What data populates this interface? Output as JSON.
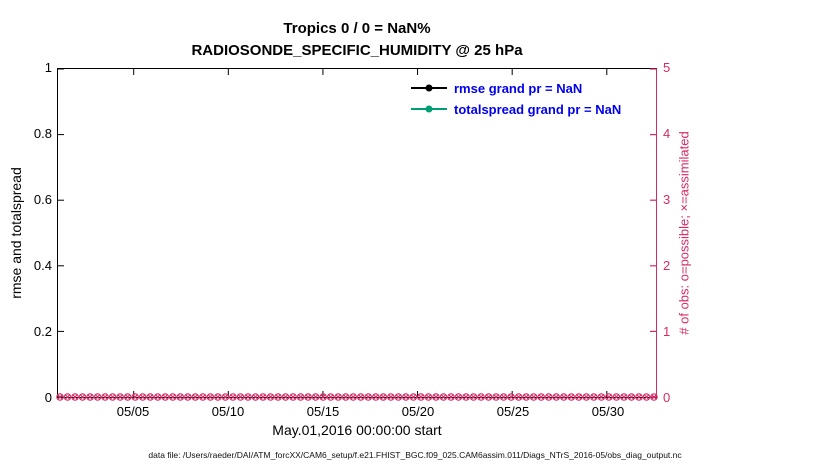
{
  "title": {
    "line1": "Tropics 0 / 0 = NaN%",
    "line2": "RADIOSONDE_SPECIFIC_HUMIDITY @ 25 hPa"
  },
  "axes": {
    "left": {
      "label": "rmse and totalspread",
      "ticks": [
        "0",
        "0.2",
        "0.4",
        "0.6",
        "0.8",
        "1"
      ]
    },
    "right": {
      "label": "# of obs: o=possible; ×=assimilated",
      "ticks": [
        "0",
        "1",
        "2",
        "3",
        "4",
        "5"
      ],
      "color": "#d62a66"
    },
    "x": {
      "label": "May.01,2016 00:00:00 start",
      "ticks": [
        "05/05",
        "05/10",
        "05/15",
        "05/20",
        "05/25",
        "05/30"
      ]
    }
  },
  "legend": [
    {
      "label": "rmse grand pr = NaN",
      "color": "#000000"
    },
    {
      "label": "totalspread grand pr = NaN",
      "color": "#009E73"
    }
  ],
  "caption": "data file: /Users/raeder/DAI/ATM_forcXX/CAM6_setup/f.e21.FHIST_BGC.f09_025.CAM6assim.011/Diags_NTrS_2016-05/obs_diag_output.nc",
  "chart_data": {
    "type": "line",
    "title": "Tropics 0 / 0 = NaN%",
    "subtitle": "RADIOSONDE_SPECIFIC_HUMIDITY @ 25 hPa",
    "xlabel": "May.01,2016 00:00:00 start",
    "x_tick_labels": [
      "05/05",
      "05/10",
      "05/15",
      "05/20",
      "05/25",
      "05/30"
    ],
    "x_tick_days": [
      4,
      9,
      14,
      19,
      24,
      29
    ],
    "x_total_days": 31.6,
    "left_axis": {
      "label": "rmse and totalspread",
      "ylim": [
        0,
        1
      ],
      "ticks": [
        0,
        0.2,
        0.4,
        0.6,
        0.8,
        1
      ]
    },
    "right_axis": {
      "label": "# of obs: o=possible; ×=assimilated",
      "ylim": [
        0,
        5
      ],
      "ticks": [
        0,
        1,
        2,
        3,
        4,
        5
      ]
    },
    "series": [
      {
        "name": "rmse",
        "grand_pr": "NaN",
        "color": "#000000",
        "values": []
      },
      {
        "name": "totalspread",
        "grand_pr": "NaN",
        "color": "#009E73",
        "values": []
      }
    ],
    "obs_counts": {
      "possible": 0,
      "assimilated": 0,
      "value_on_right_axis": 0,
      "marker_count": 80,
      "color": "#d62a66"
    },
    "grid": false,
    "legend_position": "upper-center-right",
    "notes": "rmse and totalspread series are NaN (no curves drawn); obs possible (o) and assimilated (x) markers all at 0 along the x-axis"
  }
}
